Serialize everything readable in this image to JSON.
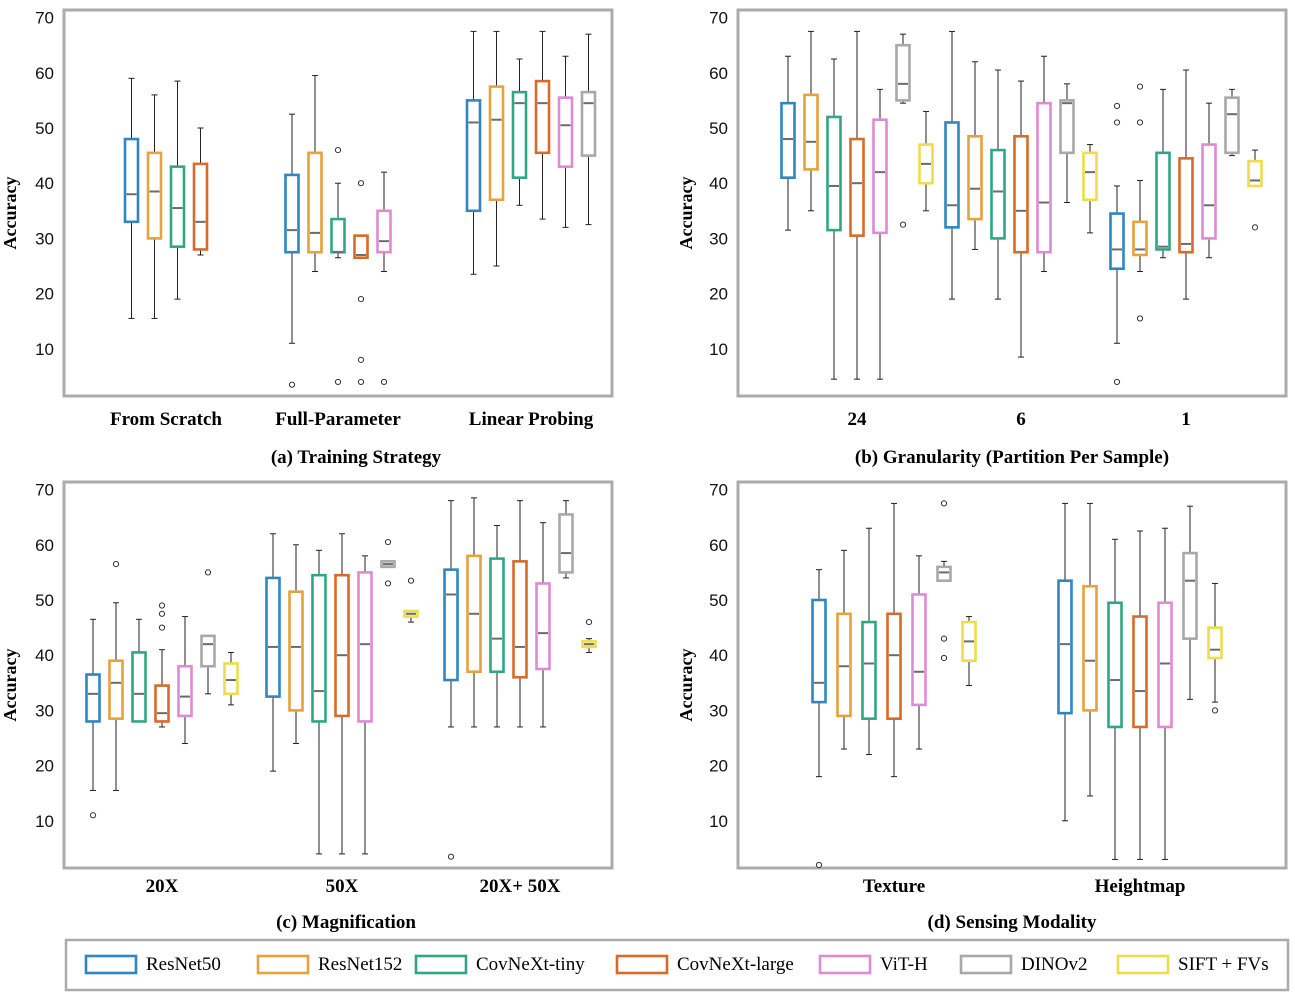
{
  "colors": {
    "series": [
      "#2f86c1",
      "#e8a23a",
      "#2fa882",
      "#d86a2a",
      "#e08ad4",
      "#a8a8a8",
      "#eedd4a"
    ],
    "frame": "#ababab",
    "median": "#6b6b6b",
    "whisker": "#222222"
  },
  "legend": [
    "ResNet50",
    "ResNet152",
    "CovNeXt-tiny",
    "CovNeXt-large",
    "ViT-H",
    "DINOv2",
    "SIFT + FVs"
  ],
  "chart_data": [
    {
      "type": "box",
      "caption": "(a) Training Strategy",
      "ylabel": "Accuracy",
      "yticks": [
        10,
        20,
        30,
        40,
        50,
        60,
        70
      ],
      "ylim": [
        0,
        70
      ],
      "categories": [
        "From Scratch",
        "Full-Parameter",
        "Linear Probing"
      ],
      "groups": [
        [
          {
            "min": 15.5,
            "q1": 33,
            "median": 38,
            "q3": 48,
            "max": 59,
            "outliers": []
          },
          {
            "min": 15.5,
            "q1": 30,
            "median": 38.5,
            "q3": 45.5,
            "max": 56,
            "outliers": []
          },
          {
            "min": 19,
            "q1": 28.5,
            "median": 35.5,
            "q3": 43,
            "max": 58.5,
            "outliers": []
          },
          {
            "min": 27,
            "q1": 28,
            "median": 33,
            "q3": 43.5,
            "max": 50,
            "outliers": []
          }
        ],
        [
          {
            "min": 11,
            "q1": 27.5,
            "median": 31.5,
            "q3": 41.5,
            "max": 52.5,
            "outliers": [
              3.5
            ]
          },
          {
            "min": 24,
            "q1": 27.5,
            "median": 31,
            "q3": 45.5,
            "max": 59.5,
            "outliers": []
          },
          {
            "min": 26.5,
            "q1": 27.5,
            "median": 27.5,
            "q3": 33.5,
            "max": 40,
            "outliers": [
              46,
              4
            ]
          },
          {
            "min": 26.5,
            "q1": 26.5,
            "median": 27,
            "q3": 30.5,
            "max": 30.5,
            "outliers": [
              40,
              19,
              8,
              4
            ]
          },
          {
            "min": 24,
            "q1": 27.5,
            "median": 29.5,
            "q3": 35,
            "max": 42,
            "outliers": [
              4
            ]
          }
        ],
        [
          {
            "min": 23.5,
            "q1": 35,
            "median": 51,
            "q3": 55,
            "max": 67.5,
            "outliers": []
          },
          {
            "min": 25,
            "q1": 37,
            "median": 51.5,
            "q3": 57.5,
            "max": 67.5,
            "outliers": []
          },
          {
            "min": 36,
            "q1": 41,
            "median": 54.5,
            "q3": 56.5,
            "max": 62.5,
            "outliers": []
          },
          {
            "min": 33.5,
            "q1": 45.5,
            "median": 54.5,
            "q3": 58.5,
            "max": 67.5,
            "outliers": []
          },
          {
            "min": 32,
            "q1": 43,
            "median": 50.5,
            "q3": 55.5,
            "max": 63,
            "outliers": []
          },
          {
            "min": 32.5,
            "q1": 45,
            "median": 54.5,
            "q3": 56.5,
            "max": 67,
            "outliers": []
          }
        ]
      ]
    },
    {
      "type": "box",
      "caption": "(b) Granularity (Partition Per Sample)",
      "ylabel": "Accuracy",
      "yticks": [
        10,
        20,
        30,
        40,
        50,
        60,
        70
      ],
      "ylim": [
        0,
        70
      ],
      "categories": [
        "24",
        "6",
        "1"
      ],
      "groups": [
        [
          {
            "min": 31.5,
            "q1": 41,
            "median": 48,
            "q3": 54.5,
            "max": 63,
            "outliers": []
          },
          {
            "min": 35,
            "q1": 42.5,
            "median": 47.5,
            "q3": 56,
            "max": 67.5,
            "outliers": []
          },
          {
            "min": 4.5,
            "q1": 31.5,
            "median": 39.5,
            "q3": 52,
            "max": 62.5,
            "outliers": []
          },
          {
            "min": 4.5,
            "q1": 30.5,
            "median": 40,
            "q3": 48,
            "max": 67.5,
            "outliers": []
          },
          {
            "min": 4.5,
            "q1": 31,
            "median": 42,
            "q3": 51.5,
            "max": 57,
            "outliers": []
          },
          {
            "min": 54.5,
            "q1": 55,
            "median": 58,
            "q3": 65,
            "max": 67,
            "outliers": [
              32.5
            ]
          },
          {
            "min": 35,
            "q1": 40,
            "median": 43.5,
            "q3": 47,
            "max": 53,
            "outliers": []
          }
        ],
        [
          {
            "min": 19,
            "q1": 32,
            "median": 36,
            "q3": 51,
            "max": 67.5,
            "outliers": []
          },
          {
            "min": 28,
            "q1": 33.5,
            "median": 39,
            "q3": 48.5,
            "max": 62,
            "outliers": []
          },
          {
            "min": 19,
            "q1": 30,
            "median": 38.5,
            "q3": 46,
            "max": 60.5,
            "outliers": []
          },
          {
            "min": 8.5,
            "q1": 27.5,
            "median": 35,
            "q3": 48.5,
            "max": 58.5,
            "outliers": []
          },
          {
            "min": 24,
            "q1": 27.5,
            "median": 36.5,
            "q3": 54.5,
            "max": 63,
            "outliers": []
          },
          {
            "min": 36.5,
            "q1": 45.5,
            "median": 54.5,
            "q3": 55,
            "max": 58,
            "outliers": []
          },
          {
            "min": 31,
            "q1": 37,
            "median": 42,
            "q3": 45.5,
            "max": 47,
            "outliers": []
          }
        ],
        [
          {
            "min": 11,
            "q1": 24.5,
            "median": 28,
            "q3": 34.5,
            "max": 39.5,
            "outliers": [
              54,
              51,
              4
            ]
          },
          {
            "min": 24,
            "q1": 27,
            "median": 28,
            "q3": 33,
            "max": 40.5,
            "outliers": [
              57.5,
              51,
              15.5
            ]
          },
          {
            "min": 26.5,
            "q1": 28,
            "median": 28.5,
            "q3": 45.5,
            "max": 57,
            "outliers": []
          },
          {
            "min": 19,
            "q1": 27.5,
            "median": 29,
            "q3": 44.5,
            "max": 60.5,
            "outliers": []
          },
          {
            "min": 26.5,
            "q1": 30,
            "median": 36,
            "q3": 47,
            "max": 54.5,
            "outliers": []
          },
          {
            "min": 45,
            "q1": 45.5,
            "median": 52.5,
            "q3": 55.5,
            "max": 57,
            "outliers": []
          },
          {
            "min": 39.5,
            "q1": 39.5,
            "median": 40.5,
            "q3": 44,
            "max": 46,
            "outliers": [
              32
            ]
          }
        ]
      ]
    },
    {
      "type": "box",
      "caption": "(c) Magnification",
      "ylabel": "Accuracy",
      "yticks": [
        10,
        20,
        30,
        40,
        50,
        60,
        70
      ],
      "ylim": [
        0,
        70
      ],
      "categories": [
        "20X",
        "50X",
        "20X+ 50X"
      ],
      "groups": [
        [
          {
            "min": 15.5,
            "q1": 28,
            "median": 33,
            "q3": 36.5,
            "max": 46.5,
            "outliers": [
              11
            ]
          },
          {
            "min": 15.5,
            "q1": 28.5,
            "median": 35,
            "q3": 39,
            "max": 49.5,
            "outliers": [
              56.5
            ]
          },
          {
            "min": 28,
            "q1": 28,
            "median": 33,
            "q3": 40.5,
            "max": 46.5,
            "outliers": []
          },
          {
            "min": 27,
            "q1": 28,
            "median": 29.5,
            "q3": 34.5,
            "max": 41,
            "outliers": [
              49,
              47.5,
              45
            ]
          },
          {
            "min": 24,
            "q1": 29,
            "median": 32.5,
            "q3": 38,
            "max": 47,
            "outliers": []
          },
          {
            "min": 33,
            "q1": 38,
            "median": 42,
            "q3": 43.5,
            "max": 43.5,
            "outliers": [
              55
            ]
          },
          {
            "min": 31,
            "q1": 33,
            "median": 35.5,
            "q3": 38.5,
            "max": 40.5,
            "outliers": []
          }
        ],
        [
          {
            "min": 19,
            "q1": 32.5,
            "median": 41.5,
            "q3": 54,
            "max": 62,
            "outliers": []
          },
          {
            "min": 24,
            "q1": 30,
            "median": 41.5,
            "q3": 51.5,
            "max": 60,
            "outliers": []
          },
          {
            "min": 4,
            "q1": 28,
            "median": 33.5,
            "q3": 54.5,
            "max": 59,
            "outliers": []
          },
          {
            "min": 4,
            "q1": 29,
            "median": 40,
            "q3": 54.5,
            "max": 62,
            "outliers": []
          },
          {
            "min": 4,
            "q1": 28,
            "median": 42,
            "q3": 55,
            "max": 58,
            "outliers": []
          },
          {
            "min": 56,
            "q1": 56,
            "median": 56.5,
            "q3": 57,
            "max": 57,
            "outliers": [
              60.5,
              53
            ]
          },
          {
            "min": 46,
            "q1": 47,
            "median": 47.5,
            "q3": 48,
            "max": 48,
            "outliers": [
              53.5
            ]
          }
        ],
        [
          {
            "min": 27,
            "q1": 35.5,
            "median": 51,
            "q3": 55.5,
            "max": 68,
            "outliers": [
              3.5
            ]
          },
          {
            "min": 27,
            "q1": 37,
            "median": 47.5,
            "q3": 58,
            "max": 68.5,
            "outliers": []
          },
          {
            "min": 27,
            "q1": 37,
            "median": 43,
            "q3": 57.5,
            "max": 63.5,
            "outliers": []
          },
          {
            "min": 27,
            "q1": 36,
            "median": 41.5,
            "q3": 57,
            "max": 68,
            "outliers": []
          },
          {
            "min": 27,
            "q1": 37.5,
            "median": 44,
            "q3": 53,
            "max": 64,
            "outliers": []
          },
          {
            "min": 54,
            "q1": 55,
            "median": 58.5,
            "q3": 65.5,
            "max": 68,
            "outliers": []
          },
          {
            "min": 40.5,
            "q1": 41.5,
            "median": 42,
            "q3": 42.5,
            "max": 43,
            "outliers": [
              46
            ]
          }
        ]
      ]
    },
    {
      "type": "box",
      "caption": "(d) Sensing Modality",
      "ylabel": "Accuracy",
      "yticks": [
        10,
        20,
        30,
        40,
        50,
        60,
        70
      ],
      "ylim": [
        0,
        70
      ],
      "categories": [
        "Texture",
        "Heightmap"
      ],
      "groups": [
        [
          {
            "min": 18,
            "q1": 31.5,
            "median": 35,
            "q3": 50,
            "max": 55.5,
            "outliers": [
              2
            ]
          },
          {
            "min": 23,
            "q1": 29,
            "median": 38,
            "q3": 47.5,
            "max": 59,
            "outliers": []
          },
          {
            "min": 22,
            "q1": 28.5,
            "median": 38.5,
            "q3": 46,
            "max": 63,
            "outliers": []
          },
          {
            "min": 18,
            "q1": 28.5,
            "median": 40,
            "q3": 47.5,
            "max": 67.5,
            "outliers": []
          },
          {
            "min": 23,
            "q1": 31,
            "median": 37,
            "q3": 51,
            "max": 58,
            "outliers": []
          },
          {
            "min": 53.5,
            "q1": 53.5,
            "median": 55,
            "q3": 56,
            "max": 57,
            "outliers": [
              67.5,
              43,
              39.5
            ]
          },
          {
            "min": 34.5,
            "q1": 39,
            "median": 42.5,
            "q3": 46,
            "max": 47,
            "outliers": []
          }
        ],
        [
          {
            "min": 10,
            "q1": 29.5,
            "median": 42,
            "q3": 53.5,
            "max": 67.5,
            "outliers": []
          },
          {
            "min": 14.5,
            "q1": 30,
            "median": 39,
            "q3": 52.5,
            "max": 67.5,
            "outliers": []
          },
          {
            "min": 3,
            "q1": 27,
            "median": 35.5,
            "q3": 49.5,
            "max": 61,
            "outliers": []
          },
          {
            "min": 3,
            "q1": 27,
            "median": 33.5,
            "q3": 47,
            "max": 62.5,
            "outliers": []
          },
          {
            "min": 3,
            "q1": 27,
            "median": 38.5,
            "q3": 49.5,
            "max": 63,
            "outliers": []
          },
          {
            "min": 32,
            "q1": 43,
            "median": 53.5,
            "q3": 58.5,
            "max": 67,
            "outliers": []
          },
          {
            "min": 31.5,
            "q1": 39.5,
            "median": 41,
            "q3": 45,
            "max": 53,
            "outliers": [
              30
            ]
          }
        ]
      ]
    }
  ]
}
